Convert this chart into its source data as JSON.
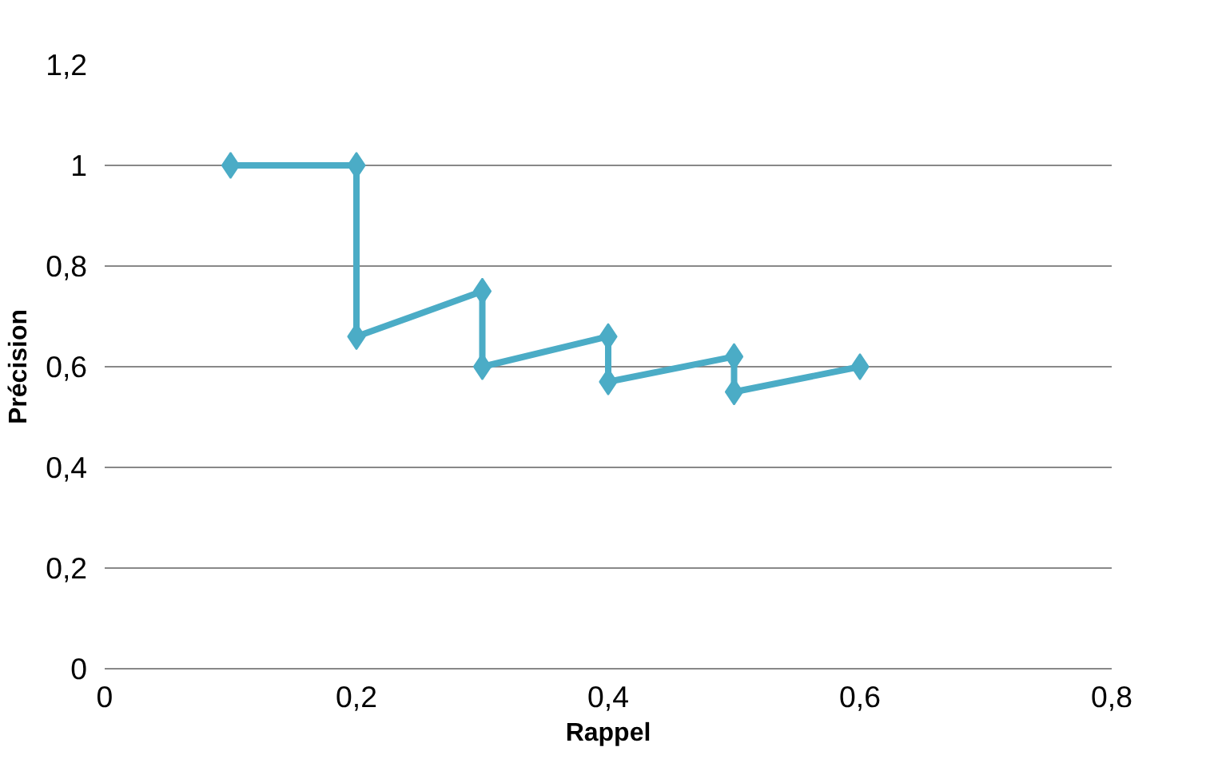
{
  "chart_data": {
    "type": "line",
    "xlabel": "Rappel",
    "ylabel": "Précision",
    "series": [
      {
        "color": "#4bacc6",
        "x": [
          0.1,
          0.2,
          0.2,
          0.3,
          0.3,
          0.4,
          0.4,
          0.5,
          0.5,
          0.6
        ],
        "values": [
          1,
          1,
          0.66,
          0.75,
          0.6,
          0.66,
          0.57,
          0.62,
          0.55,
          0.6
        ]
      }
    ],
    "xlim": [
      0,
      0.8
    ],
    "ylim": [
      0,
      1.2
    ],
    "xticks": [
      0,
      {
        "value": 0.2,
        "label": "0,2"
      },
      {
        "value": 0.4,
        "label": "0,4"
      },
      {
        "value": 0.6,
        "label": "0,6"
      },
      {
        "value": 0.8,
        "label": "0,8"
      }
    ],
    "yticks": [
      0,
      {
        "value": 0.2,
        "label": "0,2"
      },
      {
        "value": 0.4,
        "label": "0,4"
      },
      {
        "value": 0.6,
        "label": "0,6"
      },
      {
        "value": 0.8,
        "label": "0,8"
      },
      1,
      {
        "value": 1.2,
        "label": "1,2"
      }
    ],
    "grid": "y",
    "marker": "diamond",
    "line_style": "solid"
  }
}
